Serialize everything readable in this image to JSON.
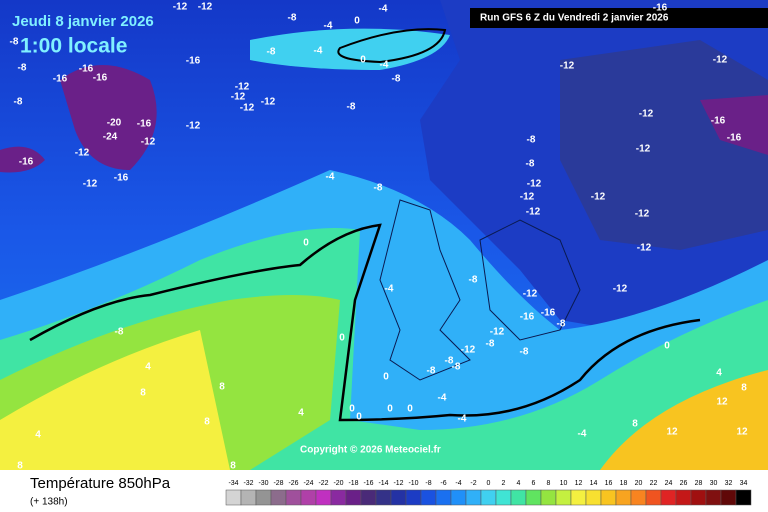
{
  "header": {
    "date": "Jeudi 8 janvier 2026",
    "time": "1:00 locale",
    "run": "Run GFS 6 Z du Vendredi 2 janvier 2026"
  },
  "copyright": "Copyright © 2026 Meteociel.fr",
  "footer": {
    "title": "Température 850hPa",
    "lead": "(+ 138h)"
  },
  "legend": {
    "values": [
      -34,
      -32,
      -30,
      -28,
      -26,
      -24,
      -22,
      -20,
      -18,
      -16,
      -14,
      -12,
      -10,
      -8,
      -6,
      -4,
      -2,
      0,
      2,
      4,
      6,
      8,
      10,
      12,
      14,
      16,
      18,
      20,
      22,
      24,
      26,
      28,
      30,
      32,
      34
    ],
    "colors": [
      "#d4d4d4",
      "#b4b4b4",
      "#949494",
      "#8c6c8c",
      "#a0509c",
      "#b040a8",
      "#c030c0",
      "#8a2aa0",
      "#6a2088",
      "#4a2a78",
      "#343288",
      "#2432a4",
      "#1c3cc4",
      "#1a52e0",
      "#1a70f0",
      "#2090f8",
      "#30b0f8",
      "#40d0f0",
      "#40e4d4",
      "#40e4a4",
      "#60e460",
      "#94e440",
      "#c4f040",
      "#f4f040",
      "#f8e030",
      "#f8c420",
      "#f8a420",
      "#f88420",
      "#f05420",
      "#e02424",
      "#c41818",
      "#a01010",
      "#801010",
      "#600808",
      "#000000"
    ]
  },
  "contour_labels": [
    -12,
    -12,
    -8,
    -4,
    0,
    -4,
    -16,
    -8,
    -16,
    -16,
    -8,
    -4,
    0,
    -4,
    -8,
    -16,
    -16,
    -8,
    -12,
    -12,
    -8,
    -12,
    -12,
    -12,
    -12,
    -8,
    -12,
    -16,
    -16,
    -20,
    -24,
    -16,
    -12,
    -12,
    -16,
    -12,
    -12,
    -16,
    -8,
    -12,
    -8,
    -4,
    -8,
    -12,
    -12,
    -12,
    -12,
    -12,
    0,
    -12,
    -8,
    -4,
    -12,
    -12,
    -16,
    -16,
    -8,
    -12,
    -8,
    0,
    -12,
    -8,
    -8,
    -8,
    0,
    4,
    0,
    -8,
    -8,
    4,
    8,
    8,
    8,
    0,
    0,
    0,
    0,
    -4,
    -4,
    12,
    4,
    8,
    8,
    -4,
    4,
    12,
    12,
    8,
    8
  ]
}
